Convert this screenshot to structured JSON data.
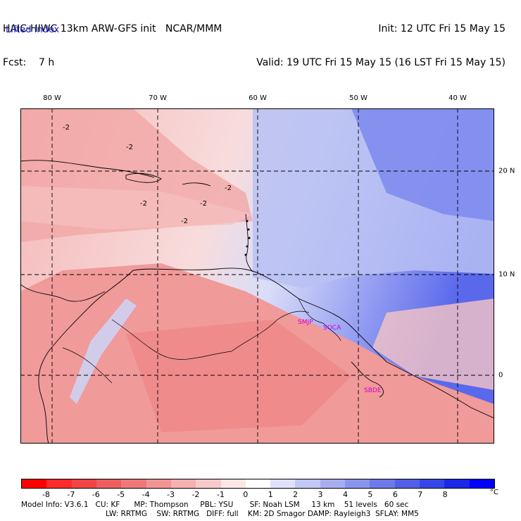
{
  "header": {
    "model_line": "HAIC-HIWC 13km ARW-GFS init   NCAR/MMM",
    "forecast_line": "Fcst:    7 h",
    "init_line": "Init: 12 UTC Fri 15 May 15",
    "valid_line": "Valid: 19 UTC Fri 15 May 15 (16 LST Fri 15 May 15)"
  },
  "field_label": "Lifted index",
  "map": {
    "longitude_labels": [
      "80 W",
      "70 W",
      "60 W",
      "50 W",
      "40 W"
    ],
    "latitude_labels": [
      "20 N",
      "10 N",
      "0"
    ],
    "station_labels": [
      "SMJP",
      "SOCA",
      "SBDE"
    ],
    "contour_labels": [
      "-2",
      "-2",
      "-2",
      "-2",
      "-2",
      "-2"
    ]
  },
  "colorbar": {
    "ticks": [
      "-8",
      "-7",
      "-6",
      "-5",
      "-4",
      "-3",
      "-2",
      "-1",
      "0",
      "1",
      "2",
      "3",
      "4",
      "5",
      "6",
      "7",
      "8"
    ],
    "unit": "°C",
    "colors": [
      "#ff0000",
      "#ff2a2a",
      "#f24444",
      "#ef5e5e",
      "#f07878",
      "#f29494",
      "#f5b0b0",
      "#f8caca",
      "#fde6e6",
      "#ffffff",
      "#dfe2fa",
      "#c2c8f5",
      "#a6aef0",
      "#8a94ec",
      "#6e7aea",
      "#525fe8",
      "#3645e8",
      "#1a28e8",
      "#0000ff"
    ]
  },
  "model_info": {
    "line1": "Model Info: V3.6.1   CU: KF      MP: Thompson     PBL: YSU       SF: Noah LSM     13 km    51 levels   60 sec",
    "line2": "LW: RRTMG    SW: RRTMG   DIFF: full    KM: 2D Smagor DAMP: Rayleigh3  SFLAY: MM5"
  }
}
